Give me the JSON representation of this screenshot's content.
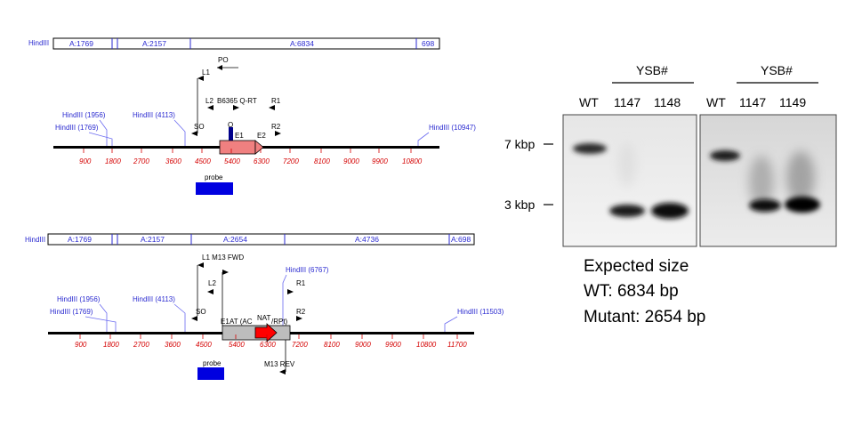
{
  "map1": {
    "fragment_bar": {
      "left_label": "HindIII",
      "segments": [
        "A:1769",
        "A:2157",
        "A:6834",
        "698"
      ]
    },
    "sites": [
      {
        "label": "HindIII (1956)"
      },
      {
        "label": "HindIII (1769)"
      },
      {
        "label": "HindIII (4113)"
      },
      {
        "label": "HindIII (10947)"
      }
    ],
    "primers": [
      "L1",
      "PO",
      "L2",
      "B6365 Q-RT",
      "R1",
      "SO",
      "Q",
      "E1",
      "E2",
      "R2"
    ],
    "ticks": [
      "900",
      "1800",
      "2700",
      "3600",
      "4500",
      "5400",
      "6300",
      "7200",
      "8100",
      "9000",
      "9900",
      "10800"
    ],
    "probe_label": "probe"
  },
  "map2": {
    "fragment_bar": {
      "left_label": "HindIII",
      "segments": [
        "A:1769",
        "A:2157",
        "A:2654",
        "A:4736",
        "A:698"
      ]
    },
    "sites": [
      {
        "label": "HindIII (6767)"
      },
      {
        "label": "HindIII (1956)"
      },
      {
        "label": "HindIII (4113)"
      },
      {
        "label": "HindIII (1769)"
      },
      {
        "label": "HindIII (11503)"
      }
    ],
    "primers": [
      "L1 M13 FWD",
      "L2",
      "R1",
      "SO",
      "R2",
      "M13 REV"
    ],
    "cassette_labels": [
      "E1",
      "AT (AC",
      "NAT",
      "/RPt)"
    ],
    "ticks": [
      "900",
      "1800",
      "2700",
      "3600",
      "4500",
      "5400",
      "6300",
      "7200",
      "8100",
      "9000",
      "9900",
      "10800",
      "11700"
    ],
    "probe_label": "probe"
  },
  "blot": {
    "group_label": "YSB#",
    "panel1_lanes": [
      "WT",
      "1147",
      "1148"
    ],
    "panel2_lanes": [
      "WT",
      "1147",
      "1149"
    ],
    "markers": [
      "7 kbp",
      "3 kbp"
    ]
  },
  "expected": {
    "title": "Expected size",
    "wt": "WT: 6834 bp",
    "mutant": "Mutant: 2654 bp"
  },
  "colors": {
    "enzyme_blue": "#2a2ad0",
    "tick_red": "#d40000",
    "probe_blue": "#0000e0",
    "exon_salmon": "#f08080",
    "nat_red": "#ff0000",
    "cassette_gray": "#bdbdbd"
  }
}
